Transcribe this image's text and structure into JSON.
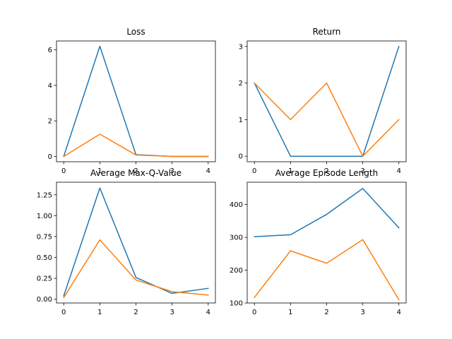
{
  "colors": {
    "series_1": "#1f77b4",
    "series_2": "#ff7f0e"
  },
  "chart_data": [
    {
      "type": "line",
      "title": "Loss",
      "x": [
        0,
        1,
        2,
        3,
        4
      ],
      "ylim": [
        -0.3,
        6.5
      ],
      "xticks": [
        0,
        1,
        2,
        3,
        4
      ],
      "yticks": [
        0,
        2,
        4,
        6
      ],
      "series": [
        {
          "values": [
            0.0,
            6.2,
            0.1,
            0.0,
            0.0
          ]
        },
        {
          "values": [
            0.0,
            1.25,
            0.08,
            0.0,
            0.0
          ]
        }
      ]
    },
    {
      "type": "line",
      "title": "Return",
      "x": [
        0,
        1,
        2,
        3,
        4
      ],
      "ylim": [
        -0.15,
        3.15
      ],
      "xticks": [
        0,
        1,
        2,
        3,
        4
      ],
      "yticks": [
        0,
        1,
        2,
        3
      ],
      "series": [
        {
          "values": [
            2,
            0,
            0,
            0,
            3
          ]
        },
        {
          "values": [
            2,
            1,
            2,
            0,
            1
          ]
        }
      ]
    },
    {
      "type": "line",
      "title": "Average Max-Q-Value",
      "x": [
        0,
        1,
        2,
        3,
        4
      ],
      "ylim": [
        -0.045,
        1.4
      ],
      "xticks": [
        0,
        1,
        2,
        3,
        4
      ],
      "yticks": [
        0.0,
        0.25,
        0.5,
        0.75,
        1.0,
        1.25
      ],
      "ytick_labels": [
        "0.00",
        "0.25",
        "0.50",
        "0.75",
        "1.00",
        "1.25"
      ],
      "series": [
        {
          "values": [
            0.04,
            1.33,
            0.26,
            0.07,
            0.13
          ]
        },
        {
          "values": [
            0.02,
            0.71,
            0.23,
            0.09,
            0.05
          ]
        }
      ]
    },
    {
      "type": "line",
      "title": "Average Episode Length",
      "x": [
        0,
        1,
        2,
        3,
        4
      ],
      "ylim": [
        100,
        468
      ],
      "xticks": [
        0,
        1,
        2,
        3,
        4
      ],
      "yticks": [
        100,
        200,
        300,
        400
      ],
      "series": [
        {
          "values": [
            302,
            308,
            370,
            449,
            329
          ]
        },
        {
          "values": [
            117,
            259,
            221,
            293,
            110
          ]
        }
      ]
    }
  ]
}
